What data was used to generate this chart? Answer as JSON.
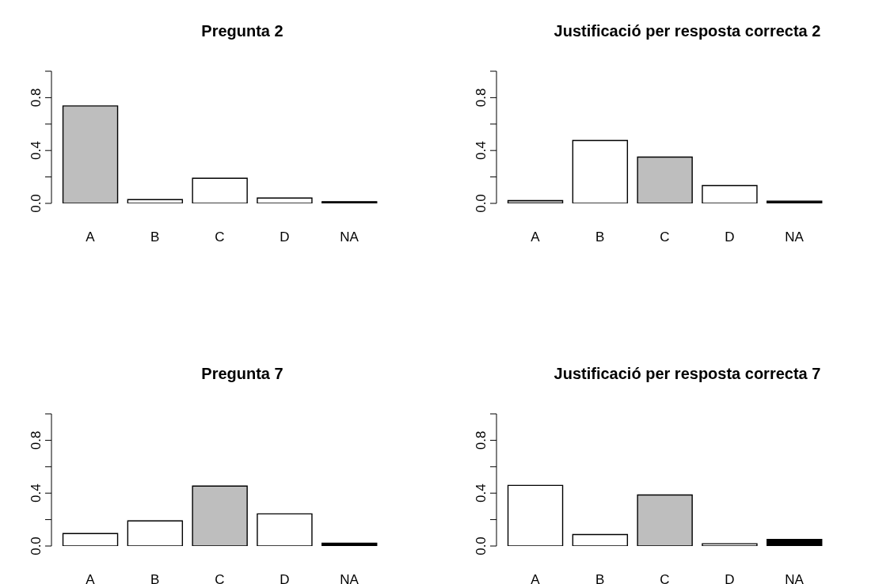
{
  "chart_data": [
    {
      "type": "bar",
      "title": "Pregunta 2",
      "categories": [
        "A",
        "B",
        "C",
        "D",
        "NA"
      ],
      "values": [
        0.737,
        0.028,
        0.19,
        0.04,
        0.013
      ],
      "colors": [
        "#bebebe",
        "#ffffff",
        "#ffffff",
        "#ffffff",
        "#000000"
      ],
      "ylim": [
        0,
        1
      ],
      "yticks": [
        {
          "value": 0,
          "label": "0.0"
        },
        {
          "value": 0.2,
          "label": null
        },
        {
          "value": 0.4,
          "label": "0.4"
        },
        {
          "value": 0.6,
          "label": null
        },
        {
          "value": 0.8,
          "label": "0.8"
        },
        {
          "value": 1,
          "label": null
        }
      ]
    },
    {
      "type": "bar",
      "title": "Justificació per resposta correcta 2",
      "categories": [
        "A",
        "B",
        "C",
        "D",
        "NA"
      ],
      "values": [
        0.021,
        0.476,
        0.35,
        0.135,
        0.017
      ],
      "colors": [
        "#bebebe",
        "#ffffff",
        "#bebebe",
        "#ffffff",
        "#000000"
      ],
      "ylim": [
        0,
        1
      ],
      "yticks": [
        {
          "value": 0,
          "label": "0.0"
        },
        {
          "value": 0.2,
          "label": null
        },
        {
          "value": 0.4,
          "label": "0.4"
        },
        {
          "value": 0.6,
          "label": null
        },
        {
          "value": 0.8,
          "label": "0.8"
        },
        {
          "value": 1,
          "label": null
        }
      ]
    },
    {
      "type": "bar",
      "title": "Pregunta 7",
      "categories": [
        "A",
        "B",
        "C",
        "D",
        "NA"
      ],
      "values": [
        0.094,
        0.19,
        0.454,
        0.243,
        0.021
      ],
      "colors": [
        "#ffffff",
        "#ffffff",
        "#bebebe",
        "#ffffff",
        "#000000"
      ],
      "ylim": [
        0,
        1
      ],
      "yticks": [
        {
          "value": 0,
          "label": "0.0"
        },
        {
          "value": 0.2,
          "label": null
        },
        {
          "value": 0.4,
          "label": "0.4"
        },
        {
          "value": 0.6,
          "label": null
        },
        {
          "value": 0.8,
          "label": "0.8"
        },
        {
          "value": 1,
          "label": null
        }
      ]
    },
    {
      "type": "bar",
      "title": "Justificació per resposta correcta 7",
      "categories": [
        "A",
        "B",
        "C",
        "D",
        "NA"
      ],
      "values": [
        0.459,
        0.087,
        0.386,
        0.017,
        0.049
      ],
      "colors": [
        "#ffffff",
        "#ffffff",
        "#bebebe",
        "#ffffff",
        "#000000"
      ],
      "ylim": [
        0,
        1
      ],
      "yticks": [
        {
          "value": 0,
          "label": "0.0"
        },
        {
          "value": 0.2,
          "label": null
        },
        {
          "value": 0.4,
          "label": "0.4"
        },
        {
          "value": 0.6,
          "label": null
        },
        {
          "value": 0.8,
          "label": "0.8"
        },
        {
          "value": 1,
          "label": null
        }
      ]
    }
  ]
}
